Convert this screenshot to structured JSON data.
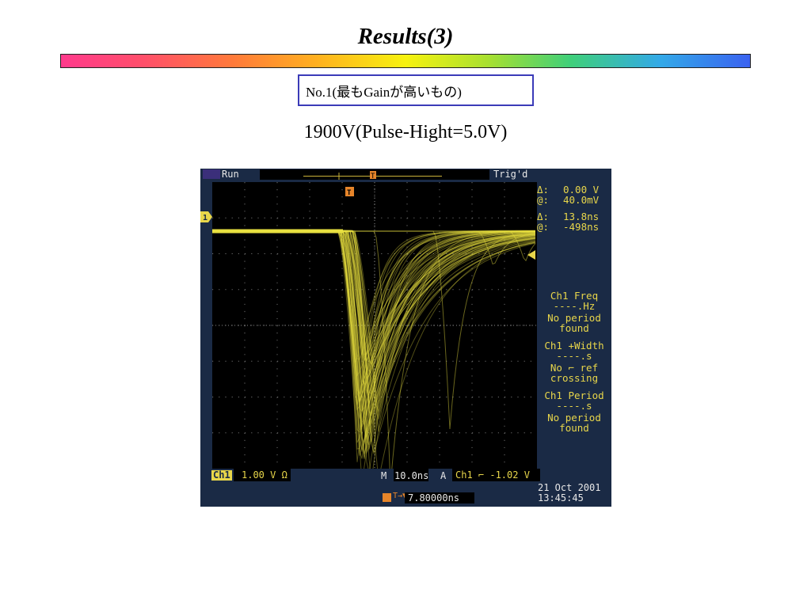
{
  "slide": {
    "title": "Results(3)",
    "box_label": "No.1(最もGainが高いもの)",
    "subtitle": "1900V(Pulse-Hight=5.0V)"
  },
  "scope": {
    "run_label": "Run",
    "trig_label": "Trig'd",
    "ch_marker": "1",
    "trigger_marker": "T",
    "cursor_v_delta_label": "Δ:",
    "cursor_v_delta": "0.00 V",
    "cursor_v_at_label": "@:",
    "cursor_v_at": "40.0mV",
    "cursor_t_delta_label": "Δ:",
    "cursor_t_delta": "13.8ns",
    "cursor_t_at_label": "@:",
    "cursor_t_at": "-498ns",
    "meas1_title": "Ch1 Freq",
    "meas1_value": "----.Hz",
    "meas1_note1": "No period",
    "meas1_note2": "found",
    "meas2_title": "Ch1 +Width",
    "meas2_value": "----.s",
    "meas2_note1": "No ⌐ ref",
    "meas2_note2": "crossing",
    "meas3_title": "Ch1 Period",
    "meas3_value": "----.s",
    "meas3_note1": "No period",
    "meas3_note2": "found",
    "ch1_chip": "Ch1",
    "ch1_scale": "1.00 V Ω",
    "timebase_prefix": "M",
    "timebase": "10.0ns",
    "trig_prefix": "A",
    "trig_setting": "Ch1 ⌐ -1.02 V",
    "trig_pos_prefix": "T→▼",
    "trig_pos": "7.80000ns",
    "date": "21 Oct  2001",
    "time": "13:45:45"
  },
  "colors": {
    "trace": "#e8e040",
    "panel_bg": "#1a2a45",
    "accent_orange": "#e6852a",
    "box_border": "#3b3bb8"
  }
}
